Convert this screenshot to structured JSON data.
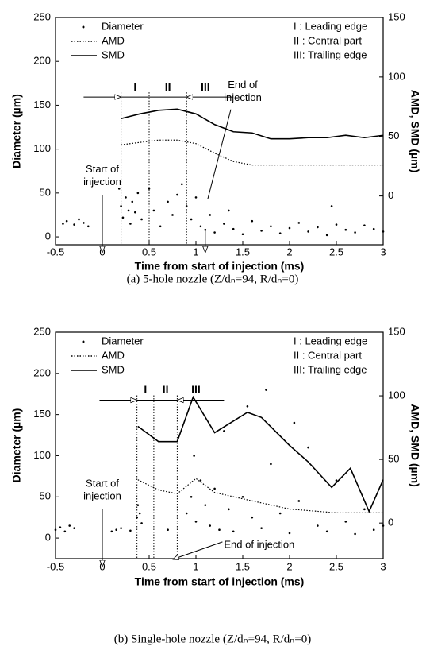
{
  "chart_data": [
    {
      "type": "combo",
      "caption": "(a)  5-hole nozzle (Z/dₙ=94, R/dₙ=0)",
      "xlabel": "Time from start of injection (ms)",
      "ylabel": "Diameter (µm)",
      "y2label": "AMD, SMD (µm)",
      "xlim": [
        -0.5,
        3
      ],
      "xticks": [
        -0.5,
        0,
        0.5,
        1,
        1.5,
        2,
        2.5,
        3
      ],
      "ylim": [
        -9,
        250
      ],
      "yticks": [
        0,
        50,
        100,
        150,
        200,
        250
      ],
      "y2lim": [
        -41,
        150
      ],
      "y2ticks": [
        0,
        50,
        100,
        150
      ],
      "series": [
        {
          "name": "Diameter",
          "type": "scatter",
          "color": "#000000",
          "x": [
            -0.42,
            -0.38,
            -0.3,
            -0.25,
            -0.2,
            -0.15,
            0.2,
            0.22,
            0.25,
            0.28,
            0.3,
            0.32,
            0.35,
            0.38,
            0.42,
            0.5,
            0.55,
            0.62,
            0.7,
            0.75,
            0.8,
            0.85,
            0.9,
            0.95,
            1.0,
            1.05,
            1.1,
            1.15,
            1.2,
            1.3,
            1.4,
            1.5,
            1.6,
            1.7,
            1.8,
            1.9,
            2.0,
            2.1,
            2.2,
            2.3,
            2.4,
            2.5,
            2.6,
            2.7,
            2.8,
            2.9,
            3.0,
            1.35,
            2.45,
            0.18
          ],
          "values": [
            15,
            18,
            14,
            20,
            16,
            12,
            35,
            22,
            45,
            30,
            15,
            40,
            28,
            50,
            20,
            55,
            30,
            12,
            40,
            25,
            48,
            60,
            35,
            20,
            45,
            12,
            8,
            25,
            5,
            15,
            9,
            3,
            18,
            7,
            12,
            4,
            10,
            16,
            6,
            11,
            2,
            14,
            8,
            5,
            13,
            9,
            6,
            30,
            35,
            55
          ]
        },
        {
          "name": "AMD",
          "type": "line",
          "dash": "dotted",
          "axis": "y2",
          "color": "#000000",
          "x": [
            0.2,
            0.4,
            0.6,
            0.8,
            1.0,
            1.2,
            1.4,
            1.6,
            1.8,
            2.0,
            2.2,
            2.4,
            2.6,
            2.8,
            3.0
          ],
          "values": [
            43,
            45,
            47,
            47,
            44,
            36,
            29,
            26,
            26,
            26,
            26,
            26,
            26,
            26,
            26
          ]
        },
        {
          "name": "SMD",
          "type": "line",
          "dash": "solid",
          "axis": "y2",
          "color": "#000000",
          "x": [
            0.2,
            0.4,
            0.6,
            0.8,
            1.0,
            1.2,
            1.4,
            1.6,
            1.8,
            2.0,
            2.2,
            2.4,
            2.6,
            2.8,
            3.0
          ],
          "values": [
            65,
            69,
            72,
            73,
            69,
            60,
            54,
            53,
            48,
            48,
            49,
            49,
            51,
            49,
            51
          ]
        }
      ],
      "regions": {
        "bounds": [
          0.2,
          0.5,
          0.9
        ],
        "labels": [
          "I",
          "II",
          "III"
        ],
        "legend": [
          "I : Leading edge",
          "II : Central part",
          "III: Trailing edge"
        ]
      },
      "annotations": [
        {
          "lines": [
            "Start of",
            "injection"
          ],
          "x": 0
        },
        {
          "lines": [
            "End of",
            "injection"
          ],
          "x": 1.1
        }
      ]
    },
    {
      "type": "combo",
      "caption": "(b)  Single-hole nozzle (Z/dₙ=94, R/dₙ=0)",
      "xlabel": "Time from start of injection (ms)",
      "ylabel": "Diameter (µm)",
      "y2label": "AMD, SMD (µm)",
      "xlim": [
        -0.5,
        3
      ],
      "xticks": [
        -0.5,
        0,
        0.5,
        1,
        1.5,
        2,
        2.5,
        3
      ],
      "ylim": [
        -25,
        250
      ],
      "yticks": [
        0,
        50,
        100,
        150,
        200,
        250
      ],
      "y2lim": [
        -28,
        150
      ],
      "y2ticks": [
        0,
        50,
        100,
        150
      ],
      "series": [
        {
          "name": "Diameter",
          "type": "scatter",
          "color": "#000000",
          "x": [
            -0.5,
            -0.45,
            -0.4,
            -0.35,
            -0.3,
            0.1,
            0.15,
            0.2,
            0.3,
            0.37,
            0.38,
            0.4,
            0.42,
            0.7,
            0.9,
            0.95,
            1.0,
            1.05,
            1.1,
            1.15,
            1.2,
            1.25,
            1.3,
            1.35,
            1.4,
            1.5,
            1.55,
            1.6,
            1.7,
            1.8,
            1.9,
            2.0,
            2.1,
            2.2,
            2.3,
            2.4,
            2.5,
            2.6,
            2.7,
            2.8,
            2.9,
            3.0,
            1.75,
            2.05,
            0.98
          ],
          "values": [
            10,
            13,
            8,
            15,
            12,
            8,
            10,
            12,
            9,
            25,
            40,
            30,
            18,
            10,
            30,
            50,
            20,
            70,
            40,
            15,
            60,
            10,
            130,
            35,
            8,
            50,
            160,
            25,
            12,
            90,
            30,
            6,
            45,
            110,
            15,
            8,
            70,
            20,
            5,
            35,
            10,
            15,
            180,
            140,
            100
          ]
        },
        {
          "name": "AMD",
          "type": "line",
          "dash": "dotted",
          "axis": "y2",
          "color": "#000000",
          "x": [
            0.38,
            0.6,
            0.8,
            1.0,
            1.2,
            1.5,
            2.0,
            2.5,
            3.0
          ],
          "values": [
            34,
            26,
            23,
            35,
            24,
            19,
            11,
            8,
            8
          ]
        },
        {
          "name": "SMD",
          "type": "line",
          "dash": "solid",
          "axis": "y2",
          "color": "#000000",
          "x": [
            0.38,
            0.6,
            0.8,
            0.97,
            1.2,
            1.55,
            1.7,
            2.0,
            2.2,
            2.45,
            2.65,
            2.85,
            3.0
          ],
          "values": [
            76,
            64,
            64,
            99,
            71,
            87,
            83,
            61,
            48,
            28,
            43,
            9,
            34
          ]
        }
      ],
      "regions": {
        "bounds": [
          0.37,
          0.55,
          0.8
        ],
        "labels": [
          "I",
          "II",
          "III"
        ],
        "legend": [
          "I : Leading edge",
          "II : Central part",
          "III: Trailing edge"
        ]
      },
      "annotations": [
        {
          "lines": [
            "Start of",
            "injection"
          ],
          "x": 0
        },
        {
          "lines": [
            "End of injection"
          ],
          "x": 0.75
        }
      ]
    }
  ]
}
